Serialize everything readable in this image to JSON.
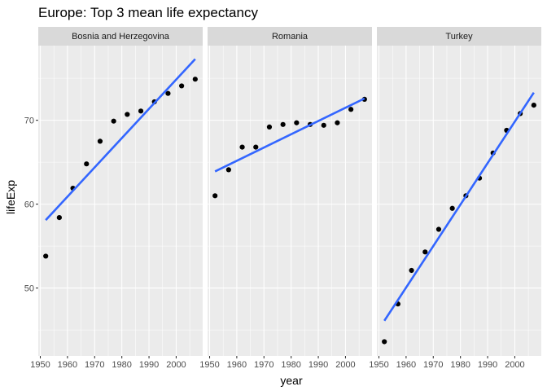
{
  "chart_data": {
    "type": "scatter",
    "title": "Europe: Top 3 mean life expectancy",
    "xlabel": "year",
    "ylabel": "lifeExp",
    "xlim": [
      1949.25,
      2009.75
    ],
    "ylim": [
      41.9,
      78.9
    ],
    "x_ticks": [
      1950,
      1960,
      1970,
      1980,
      1990,
      2000
    ],
    "y_ticks": [
      50,
      60,
      70
    ],
    "grid": true,
    "panels": [
      {
        "name": "Bosnia and Herzegovina",
        "x": [
          1952,
          1957,
          1962,
          1967,
          1972,
          1977,
          1982,
          1987,
          1992,
          1997,
          2002,
          2007
        ],
        "y": [
          53.8,
          58.4,
          61.9,
          64.8,
          67.5,
          69.9,
          70.7,
          71.1,
          72.2,
          73.2,
          74.1,
          74.9
        ],
        "fit": {
          "x": [
            1952,
            2007
          ],
          "y": [
            58.1,
            77.3
          ]
        }
      },
      {
        "name": "Romania",
        "x": [
          1952,
          1957,
          1962,
          1967,
          1972,
          1977,
          1982,
          1987,
          1992,
          1997,
          2002,
          2007
        ],
        "y": [
          61.0,
          64.1,
          66.8,
          66.8,
          69.2,
          69.5,
          69.7,
          69.5,
          69.4,
          69.7,
          71.3,
          72.5
        ],
        "fit": {
          "x": [
            1952,
            2007
          ],
          "y": [
            63.9,
            72.6
          ]
        }
      },
      {
        "name": "Turkey",
        "x": [
          1952,
          1957,
          1962,
          1967,
          1972,
          1977,
          1982,
          1987,
          1992,
          1997,
          2002,
          2007
        ],
        "y": [
          43.6,
          48.1,
          52.1,
          54.3,
          57.0,
          59.5,
          61.0,
          63.1,
          66.1,
          68.8,
          70.8,
          71.8
        ],
        "fit": {
          "x": [
            1952,
            2007
          ],
          "y": [
            46.1,
            73.3
          ]
        }
      }
    ],
    "colors": {
      "points": "#000000",
      "fit_line": "#3366ff",
      "panel_background": "#ebebeb",
      "strip_background": "#d9d9d9"
    }
  }
}
